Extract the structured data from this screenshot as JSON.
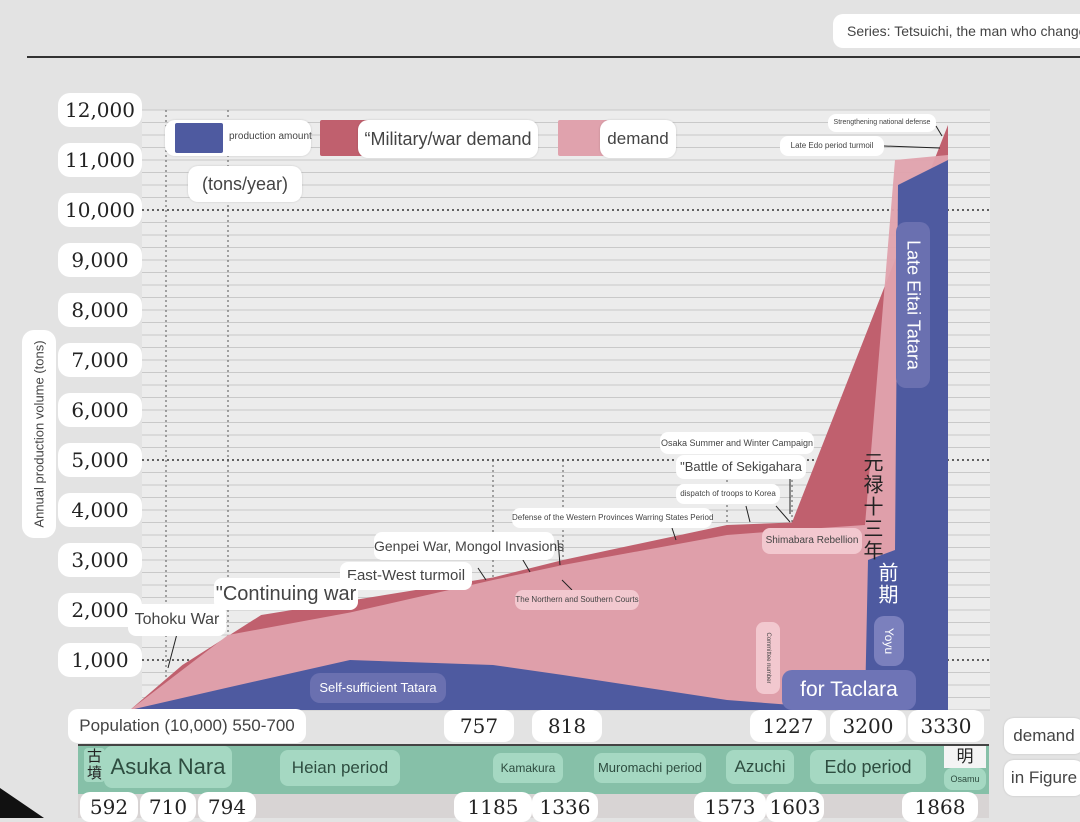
{
  "header": {
    "series_caption": "Series: Tetsuichi, the man who changed Asia"
  },
  "legend": {
    "production": "production amount",
    "military": "“Military/war demand",
    "demand": "demand",
    "unit": "(tons/year)"
  },
  "axis": {
    "y_title": "Annual production volume (tons)",
    "y_ticks": [
      "12,000",
      "11,000",
      "10,000",
      "9,000",
      "8,000",
      "7,000",
      "6,000",
      "5,000",
      "4,000",
      "3,000",
      "2,000",
      "1,000"
    ]
  },
  "population": {
    "label": "Population (10,000) 550-700",
    "values": [
      "757",
      "818",
      "1227",
      "3200",
      "3330"
    ]
  },
  "periods": {
    "kofun": "古墳",
    "asuka_nara": "Asuka Nara",
    "heian": "Heian period",
    "kamakura": "Kamakura",
    "muromachi": "Muromachi period",
    "azuchi": "Azuchi",
    "edo": "Edo period",
    "meiji": "明",
    "osamu": "Osamu"
  },
  "years": [
    "592",
    "710",
    "794",
    "1185",
    "1336",
    "1573",
    "1603",
    "1868"
  ],
  "annotations": {
    "strengthening": "Strengthening national defense",
    "late_edo": "Late Edo period turmoil",
    "osaka": "Osaka Summer and Winter Campaign",
    "sekigahara": "\"Battle of Sekigahara",
    "korea": "dispatch of troops to Korea",
    "western": "Defense of the Western Provinces Warring States Period",
    "shimabara": "Shimabara Rebellion",
    "genpei": "Genpei War, Mongol Invasions",
    "east_west": "East-West turmoil",
    "north_south": "The Northern and Southern Courts",
    "continuing": "\"Continuing war",
    "tohoku": "Tohoku War",
    "self_sufficient": "Self-sufficient Tatara",
    "late_eitai": "Late Eitai Tatara",
    "genroku": "元禄十三年",
    "zenki": "前期",
    "yoyu": "Yoyu",
    "for_taclara": "for Taclara",
    "committee": "Committee number",
    "demand_side": "demand",
    "in_figure": "in Figure"
  },
  "colors": {
    "production": "#4e5aa0",
    "military": "#c0606e",
    "demand": "#e0a2ad",
    "period_band": "#86c0a8"
  },
  "chart_data": {
    "type": "area",
    "ylabel": "Annual production volume (tons)",
    "unit": "tons/year",
    "ylim": [
      0,
      12000
    ],
    "grid": true,
    "legend_position": "top-left",
    "x_periods": [
      "592",
      "710",
      "794",
      "1185",
      "1336",
      "1573",
      "1603",
      "1868"
    ],
    "series": [
      {
        "name": "production amount",
        "points": [
          [
            592,
            0
          ],
          [
            794,
            450
          ],
          [
            1000,
            1000
          ],
          [
            1185,
            900
          ],
          [
            1336,
            700
          ],
          [
            1573,
            200
          ],
          [
            1603,
            100
          ],
          [
            1700,
            100
          ],
          [
            1740,
            3000
          ],
          [
            1790,
            3200
          ],
          [
            1800,
            10500
          ],
          [
            1868,
            11000
          ]
        ]
      },
      {
        "name": "demand",
        "points": [
          [
            592,
            0
          ],
          [
            794,
            1500
          ],
          [
            1000,
            1950
          ],
          [
            1185,
            2600
          ],
          [
            1336,
            2900
          ],
          [
            1573,
            3500
          ],
          [
            1603,
            3600
          ],
          [
            1700,
            3700
          ],
          [
            1790,
            11000
          ],
          [
            1868,
            11100
          ]
        ]
      },
      {
        "name": "“Military/war demand",
        "points": [
          [
            592,
            0
          ],
          [
            700,
            900
          ],
          [
            850,
            1900
          ],
          [
            1185,
            2650
          ],
          [
            1336,
            3000
          ],
          [
            1573,
            3700
          ],
          [
            1603,
            3750
          ],
          [
            1868,
            11700
          ]
        ]
      }
    ],
    "annotations": [
      "Tohoku War",
      "\"Continuing war",
      "East-West turmoil",
      "Genpei War, Mongol Invasions",
      "The Northern and Southern Courts",
      "Defense of the Western Provinces Warring States Period",
      "dispatch of troops to Korea",
      "\"Battle of Sekigahara",
      "Osaka Summer and Winter Campaign",
      "Shimabara Rebellion",
      "Late Edo period turmoil",
      "Strengthening national defense"
    ]
  }
}
